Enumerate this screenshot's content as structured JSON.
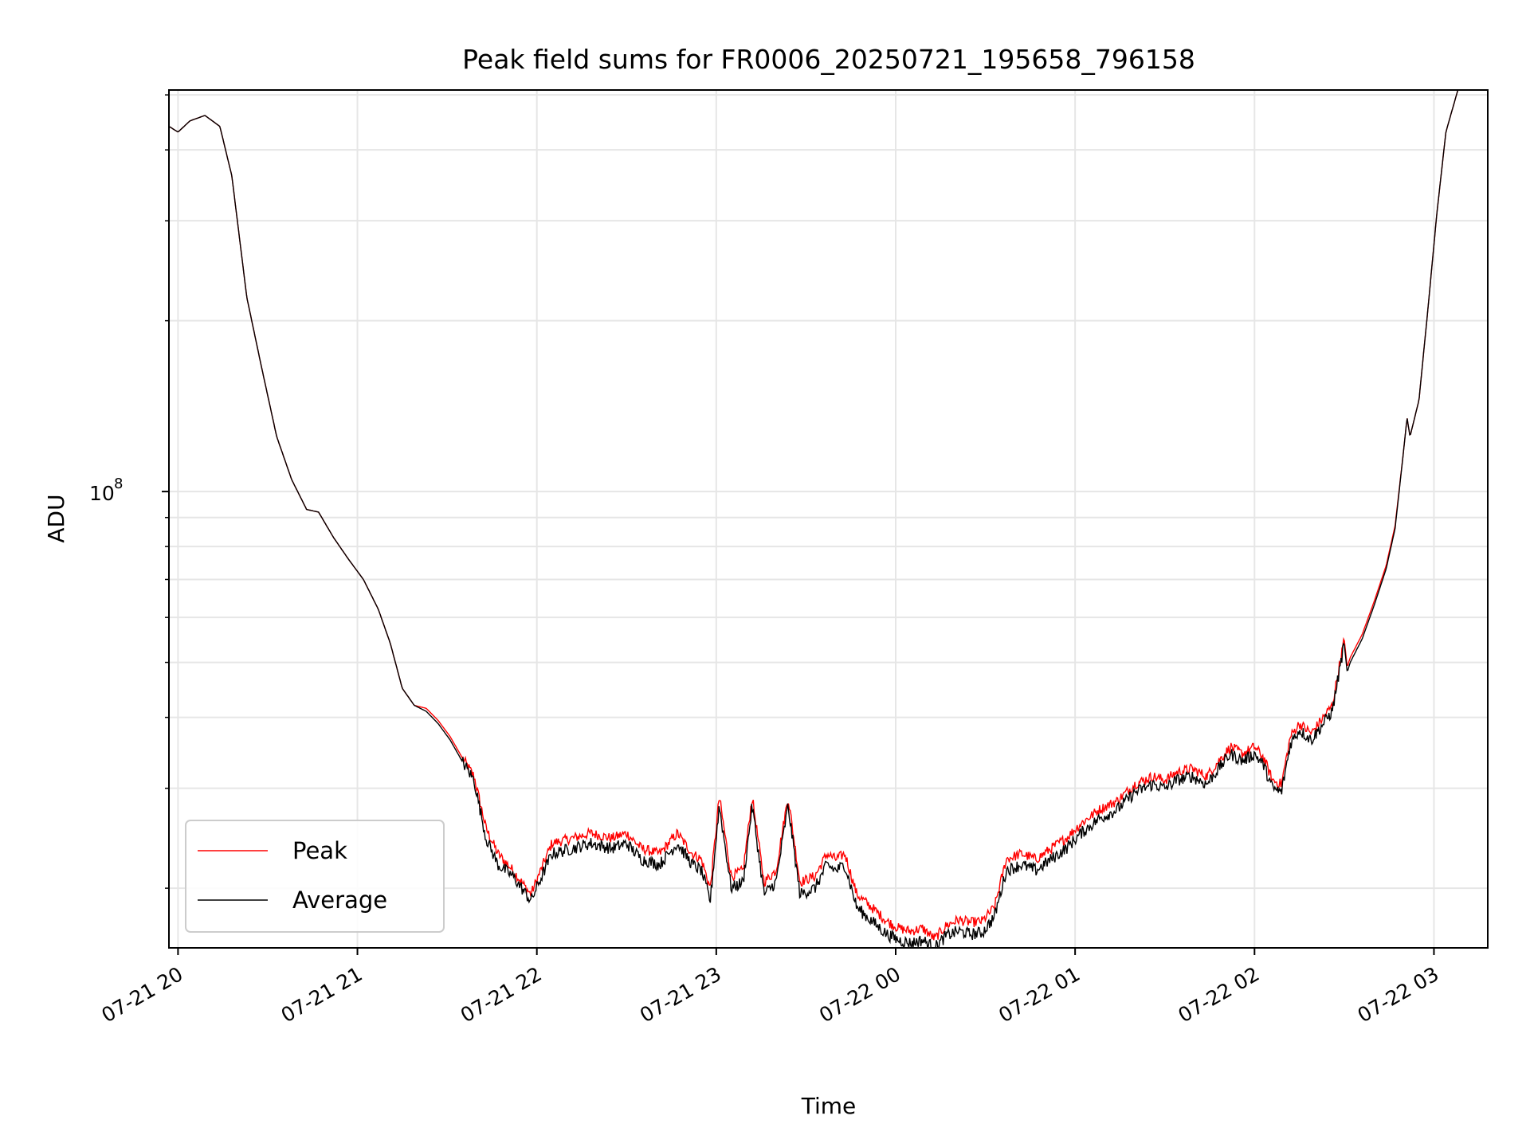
{
  "chart_data": {
    "type": "line",
    "title": "Peak field sums for FR0006_20250721_195658_796158",
    "xlabel": "Time",
    "ylabel": "ADU",
    "xlim": [
      "2025-07-21 19:56:58",
      "2025-07-22 03:18:00"
    ],
    "ylim": [
      15700000.0,
      510000000.0
    ],
    "yscale": "log",
    "x_ticks": [
      "07-21 20",
      "07-21 21",
      "07-21 22",
      "07-21 23",
      "07-22 00",
      "07-22 01",
      "07-22 02",
      "07-22 03"
    ],
    "x_tick_values": [
      "2025-07-21 20:00",
      "2025-07-21 21:00",
      "2025-07-21 22:00",
      "2025-07-21 23:00",
      "2025-07-22 00:00",
      "2025-07-22 01:00",
      "2025-07-22 02:00",
      "2025-07-22 03:00"
    ],
    "y_major_tick_label": "10",
    "y_major_tick_exponent": "8",
    "y_major_tick_value": 100000000.0,
    "grid": true,
    "legend": "lower-left",
    "series": [
      {
        "name": "Peak",
        "color": "#ff0000",
        "noise": 0.018,
        "x": [
          "2025-07-21 19:57",
          "2025-07-21 20:00",
          "2025-07-21 20:04",
          "2025-07-21 20:09",
          "2025-07-21 20:14",
          "2025-07-21 20:18",
          "2025-07-21 20:23",
          "2025-07-21 20:28",
          "2025-07-21 20:33",
          "2025-07-21 20:38",
          "2025-07-21 20:43",
          "2025-07-21 20:47",
          "2025-07-21 20:52",
          "2025-07-21 20:57",
          "2025-07-21 21:02",
          "2025-07-21 21:07",
          "2025-07-21 21:11",
          "2025-07-21 21:15",
          "2025-07-21 21:19",
          "2025-07-21 21:23",
          "2025-07-21 21:27",
          "2025-07-21 21:31",
          "2025-07-21 21:35",
          "2025-07-21 21:39",
          "2025-07-21 21:43",
          "2025-07-21 21:47",
          "2025-07-21 21:52",
          "2025-07-21 21:58",
          "2025-07-21 22:05",
          "2025-07-21 22:12",
          "2025-07-21 22:18",
          "2025-07-21 22:25",
          "2025-07-21 22:30",
          "2025-07-21 22:35",
          "2025-07-21 22:41",
          "2025-07-21 22:47",
          "2025-07-21 22:52",
          "2025-07-21 22:55",
          "2025-07-21 22:58",
          "2025-07-21 23:01",
          "2025-07-21 23:05",
          "2025-07-21 23:09",
          "2025-07-21 23:12",
          "2025-07-21 23:16",
          "2025-07-21 23:20",
          "2025-07-21 23:24",
          "2025-07-21 23:28",
          "2025-07-21 23:33",
          "2025-07-21 23:37",
          "2025-07-21 23:40",
          "2025-07-21 23:43",
          "2025-07-21 23:47",
          "2025-07-21 23:52",
          "2025-07-21 23:57",
          "2025-07-22 00:01",
          "2025-07-22 00:05",
          "2025-07-22 00:09",
          "2025-07-22 00:13",
          "2025-07-22 00:17",
          "2025-07-22 00:21",
          "2025-07-22 00:25",
          "2025-07-22 00:29",
          "2025-07-22 00:33",
          "2025-07-22 00:37",
          "2025-07-22 00:42",
          "2025-07-22 00:47",
          "2025-07-22 00:52",
          "2025-07-22 00:57",
          "2025-07-22 01:02",
          "2025-07-22 01:08",
          "2025-07-22 01:14",
          "2025-07-22 01:20",
          "2025-07-22 01:26",
          "2025-07-22 01:30",
          "2025-07-22 01:34",
          "2025-07-22 01:39",
          "2025-07-22 01:44",
          "2025-07-22 01:48",
          "2025-07-22 01:52",
          "2025-07-22 01:56",
          "2025-07-22 02:00",
          "2025-07-22 02:03",
          "2025-07-22 02:06",
          "2025-07-22 02:09",
          "2025-07-22 02:12",
          "2025-07-22 02:15",
          "2025-07-22 02:19",
          "2025-07-22 02:23",
          "2025-07-22 02:26",
          "2025-07-22 02:30",
          "2025-07-22 02:31",
          "2025-07-22 02:32",
          "2025-07-22 02:36",
          "2025-07-22 02:40",
          "2025-07-22 02:44",
          "2025-07-22 02:47",
          "2025-07-22 02:50",
          "2025-07-22 02:51",
          "2025-07-22 02:52",
          "2025-07-22 02:55",
          "2025-07-22 02:58",
          "2025-07-22 03:01",
          "2025-07-22 03:04",
          "2025-07-22 03:08"
        ],
        "y": [
          440000000.0,
          430000000.0,
          450000000.0,
          460000000.0,
          440000000.0,
          360000000.0,
          220000000.0,
          165000000.0,
          125000000.0,
          105000000.0,
          93000000.0,
          92000000.0,
          83000000.0,
          76000000.0,
          70000000.0,
          62000000.0,
          54000000.0,
          45000000.0,
          42000000.0,
          41500000.0,
          39500000.0,
          37000000.0,
          34000000.0,
          31500000.0,
          25500000.0,
          23000000.0,
          21500000.0,
          19500000.0,
          24000000.0,
          24500000.0,
          25000000.0,
          24500000.0,
          25000000.0,
          23500000.0,
          23000000.0,
          25000000.0,
          23000000.0,
          22500000.0,
          20000000.0,
          29000000.0,
          21000000.0,
          21500000.0,
          29000000.0,
          20500000.0,
          21500000.0,
          29000000.0,
          20500000.0,
          21000000.0,
          23000000.0,
          22500000.0,
          23000000.0,
          19500000.0,
          18500000.0,
          17500000.0,
          17000000.0,
          16800000.0,
          17000000.0,
          16300000.0,
          17200000.0,
          17600000.0,
          17400000.0,
          17500000.0,
          18500000.0,
          22500000.0,
          23000000.0,
          22500000.0,
          23500000.0,
          24500000.0,
          26000000.0,
          27500000.0,
          28500000.0,
          30500000.0,
          31500000.0,
          31000000.0,
          32000000.0,
          32500000.0,
          31500000.0,
          33500000.0,
          35500000.0,
          34500000.0,
          35500000.0,
          34000000.0,
          31000000.0,
          30500000.0,
          37000000.0,
          39000000.0,
          37500000.0,
          40000000.0,
          42000000.0,
          55000000.0,
          49000000.0,
          51000000.0,
          56000000.0,
          64000000.0,
          74000000.0,
          87000000.0,
          120000000.0,
          135000000.0,
          125000000.0,
          145000000.0,
          210000000.0,
          310000000.0,
          430000000.0,
          510000000.0
        ]
      },
      {
        "name": "Average",
        "color": "#000000",
        "noise": 0.022,
        "x": [
          "2025-07-21 19:57",
          "2025-07-21 20:00",
          "2025-07-21 20:04",
          "2025-07-21 20:09",
          "2025-07-21 20:14",
          "2025-07-21 20:18",
          "2025-07-21 20:23",
          "2025-07-21 20:28",
          "2025-07-21 20:33",
          "2025-07-21 20:38",
          "2025-07-21 20:43",
          "2025-07-21 20:47",
          "2025-07-21 20:52",
          "2025-07-21 20:57",
          "2025-07-21 21:02",
          "2025-07-21 21:07",
          "2025-07-21 21:11",
          "2025-07-21 21:15",
          "2025-07-21 21:19",
          "2025-07-21 21:23",
          "2025-07-21 21:27",
          "2025-07-21 21:31",
          "2025-07-21 21:35",
          "2025-07-21 21:39",
          "2025-07-21 21:43",
          "2025-07-21 21:47",
          "2025-07-21 21:52",
          "2025-07-21 21:58",
          "2025-07-21 22:05",
          "2025-07-21 22:12",
          "2025-07-21 22:18",
          "2025-07-21 22:25",
          "2025-07-21 22:30",
          "2025-07-21 22:35",
          "2025-07-21 22:41",
          "2025-07-21 22:47",
          "2025-07-21 22:52",
          "2025-07-21 22:55",
          "2025-07-21 22:58",
          "2025-07-21 23:01",
          "2025-07-21 23:05",
          "2025-07-21 23:09",
          "2025-07-21 23:12",
          "2025-07-21 23:16",
          "2025-07-21 23:20",
          "2025-07-21 23:24",
          "2025-07-21 23:28",
          "2025-07-21 23:33",
          "2025-07-21 23:37",
          "2025-07-21 23:40",
          "2025-07-21 23:43",
          "2025-07-21 23:47",
          "2025-07-21 23:52",
          "2025-07-21 23:57",
          "2025-07-22 00:01",
          "2025-07-22 00:05",
          "2025-07-22 00:09",
          "2025-07-22 00:13",
          "2025-07-22 00:17",
          "2025-07-22 00:21",
          "2025-07-22 00:25",
          "2025-07-22 00:29",
          "2025-07-22 00:33",
          "2025-07-22 00:37",
          "2025-07-22 00:42",
          "2025-07-22 00:47",
          "2025-07-22 00:52",
          "2025-07-22 00:57",
          "2025-07-22 01:02",
          "2025-07-22 01:08",
          "2025-07-22 01:14",
          "2025-07-22 01:20",
          "2025-07-22 01:26",
          "2025-07-22 01:30",
          "2025-07-22 01:34",
          "2025-07-22 01:39",
          "2025-07-22 01:44",
          "2025-07-22 01:48",
          "2025-07-22 01:52",
          "2025-07-22 01:56",
          "2025-07-22 02:00",
          "2025-07-22 02:03",
          "2025-07-22 02:06",
          "2025-07-22 02:09",
          "2025-07-22 02:12",
          "2025-07-22 02:15",
          "2025-07-22 02:19",
          "2025-07-22 02:23",
          "2025-07-22 02:26",
          "2025-07-22 02:30",
          "2025-07-22 02:31",
          "2025-07-22 02:32",
          "2025-07-22 02:36",
          "2025-07-22 02:40",
          "2025-07-22 02:44",
          "2025-07-22 02:47",
          "2025-07-22 02:50",
          "2025-07-22 02:51",
          "2025-07-22 02:52",
          "2025-07-22 02:55",
          "2025-07-22 02:58",
          "2025-07-22 03:01",
          "2025-07-22 03:04",
          "2025-07-22 03:08"
        ],
        "y": [
          440000000.0,
          430000000.0,
          450000000.0,
          460000000.0,
          440000000.0,
          360000000.0,
          220000000.0,
          165000000.0,
          125000000.0,
          105000000.0,
          93000000.0,
          92000000.0,
          83000000.0,
          76000000.0,
          70000000.0,
          62000000.0,
          54000000.0,
          45000000.0,
          42000000.0,
          41000000.0,
          39000000.0,
          36500000.0,
          33500000.0,
          31000000.0,
          24500000.0,
          22000000.0,
          21000000.0,
          19000000.0,
          23000000.0,
          23500000.0,
          24000000.0,
          23500000.0,
          24000000.0,
          22500000.0,
          22000000.0,
          24000000.0,
          22000000.0,
          21500000.0,
          19000000.0,
          28000000.0,
          20000000.0,
          20500000.0,
          28000000.0,
          19500000.0,
          20500000.0,
          28000000.0,
          19500000.0,
          20000000.0,
          22000000.0,
          21500000.0,
          22000000.0,
          18500000.0,
          17500000.0,
          16600000.0,
          16200000.0,
          16000000.0,
          16200000.0,
          15700000.0,
          16500000.0,
          16800000.0,
          16600000.0,
          16700000.0,
          17800000.0,
          21500000.0,
          22000000.0,
          21500000.0,
          22500000.0,
          23500000.0,
          25000000.0,
          26500000.0,
          27500000.0,
          29500000.0,
          30500000.0,
          30000000.0,
          31000000.0,
          31500000.0,
          30500000.0,
          32500000.0,
          34500000.0,
          33500000.0,
          34500000.0,
          33000000.0,
          30000000.0,
          29500000.0,
          36000000.0,
          38000000.0,
          36500000.0,
          39000000.0,
          41000000.0,
          54000000.0,
          48000000.0,
          50000000.0,
          55000000.0,
          63000000.0,
          73000000.0,
          86000000.0,
          120000000.0,
          135000000.0,
          125000000.0,
          145000000.0,
          210000000.0,
          310000000.0,
          430000000.0,
          510000000.0
        ]
      }
    ]
  }
}
